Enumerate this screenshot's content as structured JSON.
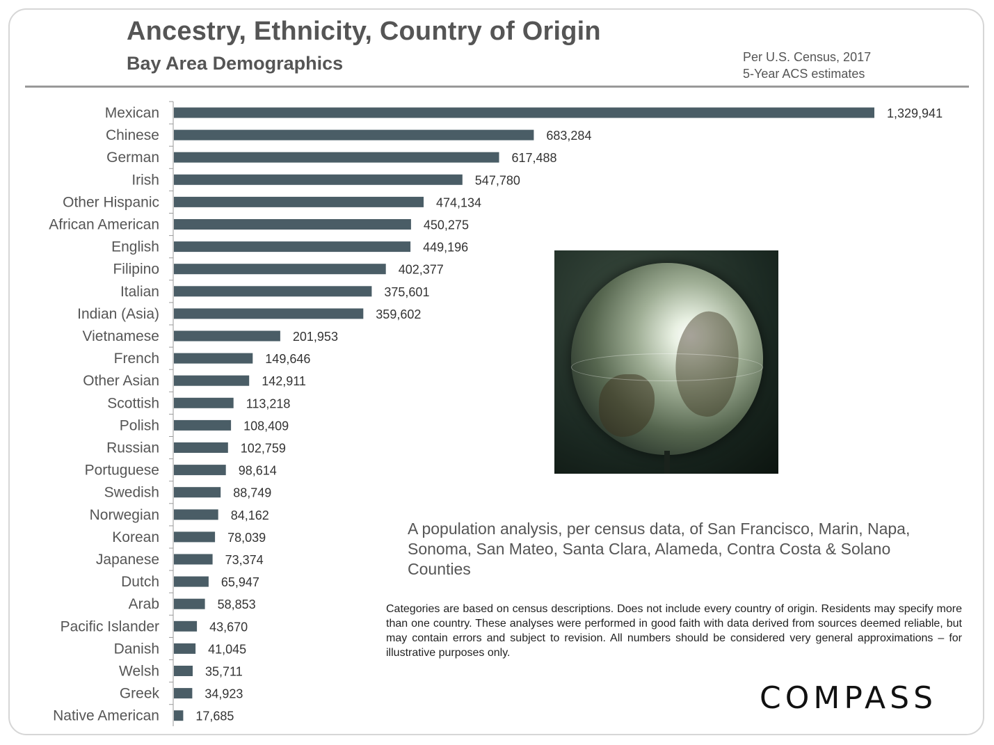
{
  "header": {
    "title": "Ancestry, Ethnicity, Country of Origin",
    "subtitle": "Bay Area Demographics",
    "source_line1": "Per U.S. Census, 2017",
    "source_line2": "5-Year ACS estimates"
  },
  "colors": {
    "bar": "#4a5d66",
    "label": "#555555",
    "axis": "#999999"
  },
  "chart_data": {
    "type": "bar",
    "orientation": "horizontal",
    "title": "Ancestry, Ethnicity, Country of Origin",
    "xlabel": "",
    "ylabel": "",
    "categories": [
      "Mexican",
      "Chinese",
      "German",
      "Irish",
      "Other Hispanic",
      "African American",
      "English",
      "Filipino",
      "Italian",
      "Indian (Asia)",
      "Vietnamese",
      "French",
      "Other Asian",
      "Scottish",
      "Polish",
      "Russian",
      "Portuguese",
      "Swedish",
      "Norwegian",
      "Korean",
      "Japanese",
      "Dutch",
      "Arab",
      "Pacific Islander",
      "Danish",
      "Welsh",
      "Greek",
      "Native American"
    ],
    "values": [
      1329941,
      683284,
      617488,
      547780,
      474134,
      450275,
      449196,
      402377,
      375601,
      359602,
      201953,
      149646,
      142911,
      113218,
      108409,
      102759,
      98614,
      88749,
      84162,
      78039,
      73374,
      65947,
      58853,
      43670,
      41045,
      35711,
      34923,
      17685
    ],
    "value_labels": [
      "1,329,941",
      "683,284",
      "617,488",
      "547,780",
      "474,134",
      "450,275",
      "449,196",
      "402,377",
      "375,601",
      "359,602",
      "201,953",
      "149,646",
      "142,911",
      "113,218",
      "108,409",
      "102,759",
      "98,614",
      "88,749",
      "84,162",
      "78,039",
      "73,374",
      "65,947",
      "58,853",
      "43,670",
      "41,045",
      "35,711",
      "34,923",
      "17,685"
    ],
    "xlim": [
      0,
      1329941
    ],
    "grid": false
  },
  "image": {
    "icon": "globe-icon"
  },
  "analysis": "A population analysis, per census data, of San Francisco, Marin, Napa, Sonoma, San Mateo, Santa Clara, Alameda, Contra Costa & Solano Counties",
  "disclaimer": "Categories are based on census descriptions. Does not include every country of origin. Residents may specify more than one country. These analyses were performed in good faith with data derived from sources deemed reliable, but may contain errors and subject to revision.  All numbers should be considered very general approximations – for illustrative purposes only.",
  "logo": "COMPASS"
}
